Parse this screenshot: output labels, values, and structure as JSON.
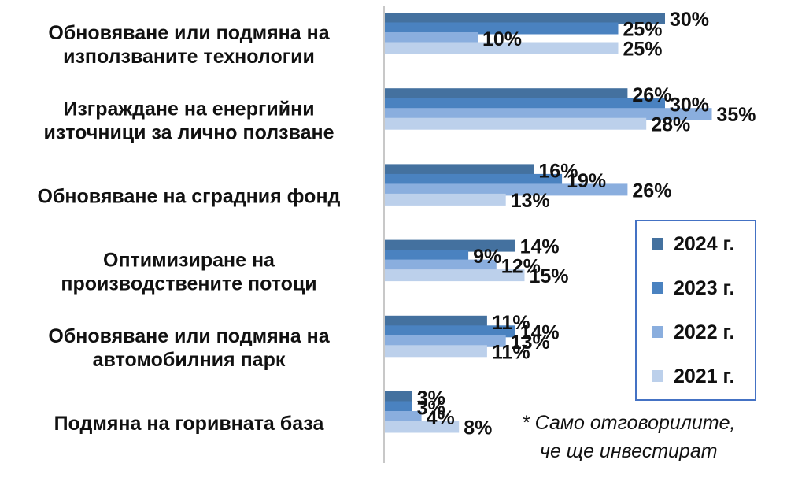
{
  "chart_data": {
    "type": "bar",
    "orientation": "horizontal",
    "categories": [
      [
        "Обновяване или подмяна на",
        "използваните технологии"
      ],
      [
        "Изграждане на енергийни",
        "източници за лично ползване"
      ],
      [
        "Обновяване на сградния фонд"
      ],
      [
        "Оптимизиране на",
        "производствените потоци"
      ],
      [
        "Обновяване или подмяна на",
        "автомобилния парк"
      ],
      [
        "Подмяна на горивната база"
      ]
    ],
    "series": [
      {
        "name": "2024 г.",
        "color": "#44719f",
        "values": [
          30,
          26,
          16,
          14,
          11,
          3
        ]
      },
      {
        "name": "2023 г.",
        "color": "#4a82c0",
        "values": [
          25,
          30,
          19,
          9,
          14,
          3
        ]
      },
      {
        "name": "2022 г.",
        "color": "#8aaede",
        "values": [
          10,
          35,
          26,
          12,
          13,
          4
        ]
      },
      {
        "name": "2021 г.",
        "color": "#bcd0eb",
        "values": [
          25,
          28,
          13,
          15,
          11,
          8
        ]
      }
    ],
    "value_suffix": "%",
    "xlim": [
      0,
      35
    ],
    "grid": false,
    "legend_position": "right",
    "note": [
      "* Само отговорилите,",
      "че ще инвестират"
    ]
  }
}
